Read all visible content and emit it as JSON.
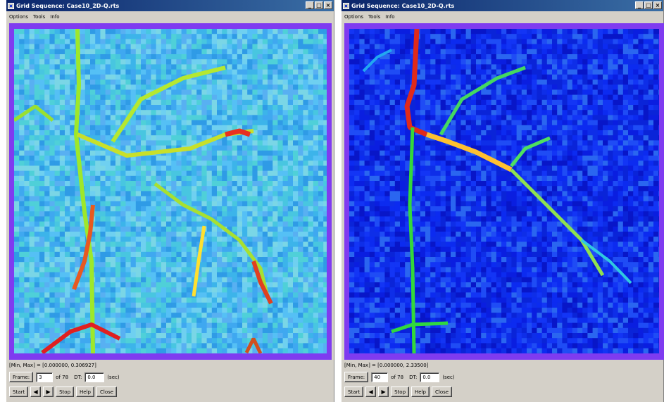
{
  "windows": [
    {
      "title": "Grid Sequence: Case10_2D-Q.rts",
      "menu": [
        "Options",
        "Tools",
        "Info"
      ],
      "minmax": "[Min, Max] = [0.000000, 0.306927]",
      "frame_label": "Frame:",
      "frame_value": "3",
      "frame_of": "of 78",
      "dt_label": "DT:",
      "dt_value": "0.0",
      "dt_unit": "(sec)",
      "buttons": {
        "start": "Start",
        "prev": "◀",
        "next": "▶",
        "stop": "Stop",
        "help": "Help",
        "close": "Close"
      },
      "colors": {
        "frame_border": "#7f3bf0"
      },
      "palette": "cyan-blue background with green-yellow-red channels"
    },
    {
      "title": "Grid Sequence: Case10_2D-Q.rts",
      "menu": [
        "Options",
        "Tools",
        "Info"
      ],
      "minmax": "[Min, Max] = [0.000000, 2.33500]",
      "frame_label": "Frame:",
      "frame_value": "40",
      "frame_of": "of 78",
      "dt_label": "DT:",
      "dt_value": "0.0",
      "dt_unit": "(sec)",
      "buttons": {
        "start": "Start",
        "prev": "◀",
        "next": "▶",
        "stop": "Stop",
        "help": "Help",
        "close": "Close"
      },
      "colors": {
        "frame_border": "#7f3bf0"
      },
      "palette": "dark blue background with cyan-green-yellow-red channels"
    }
  ],
  "window_controls": {
    "minimize": "_",
    "maximize": "□",
    "close": "×"
  }
}
